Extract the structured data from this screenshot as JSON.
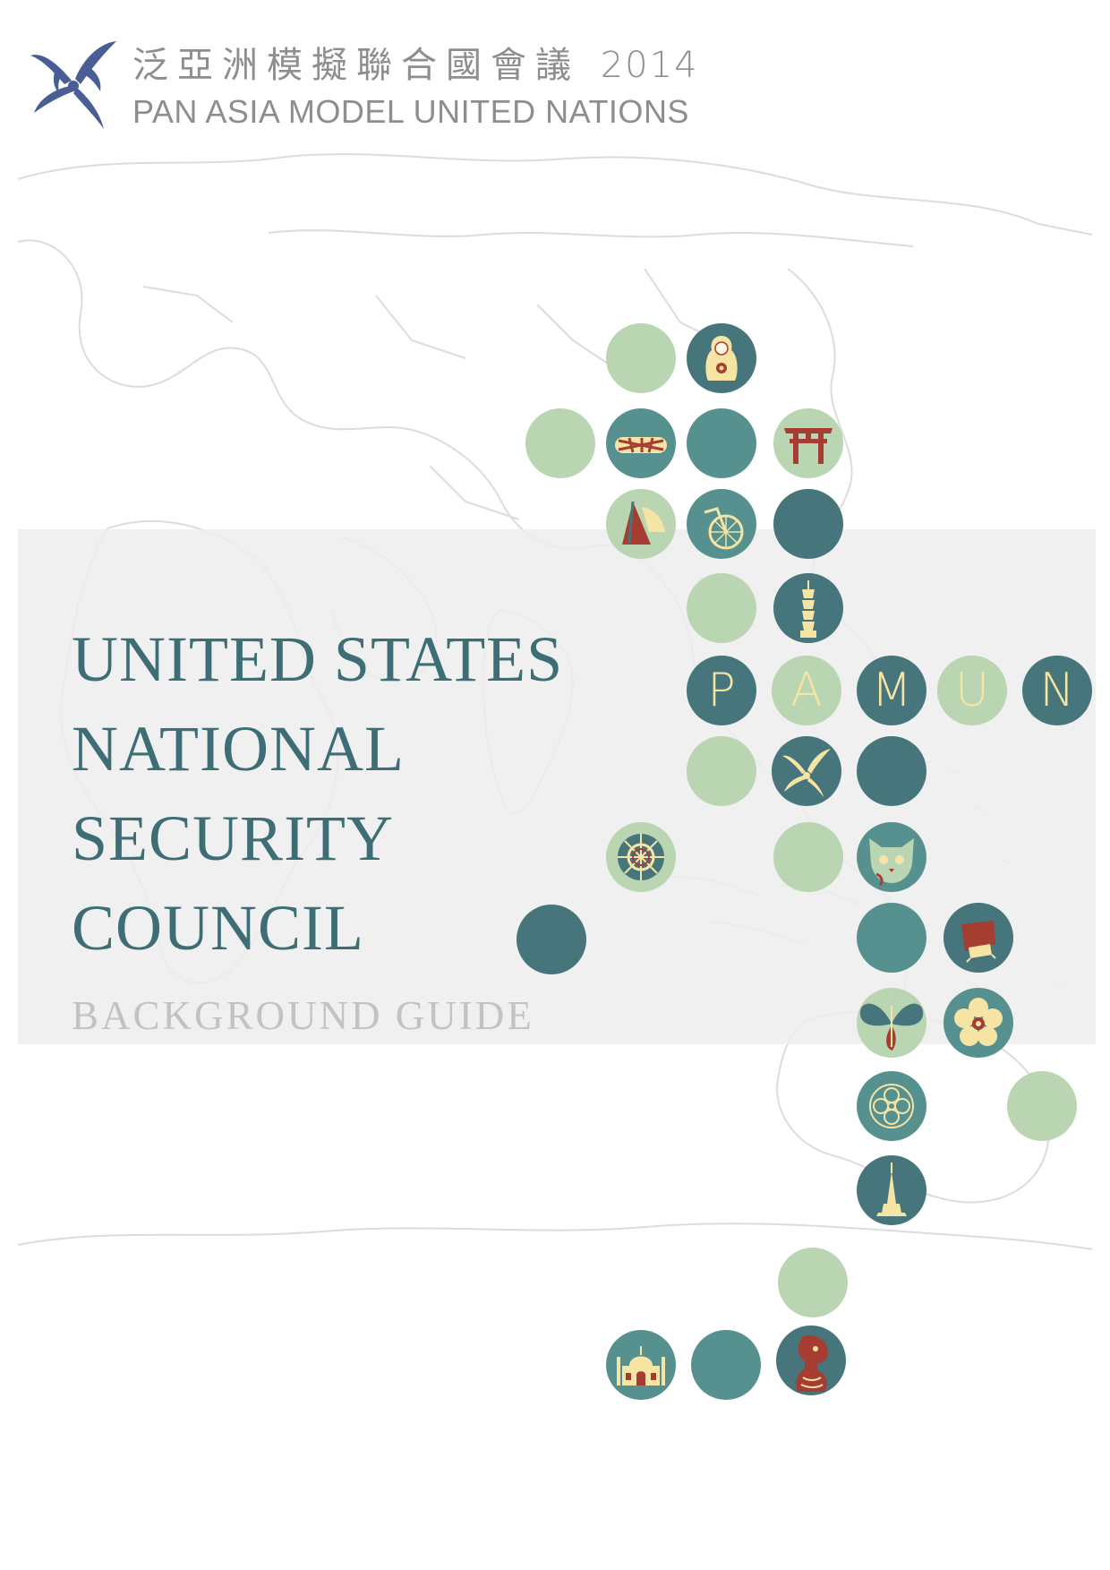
{
  "header": {
    "cjk_title": "泛亞洲模擬聯合國會議",
    "year": "2014",
    "english_title": "PAN ASIA MODEL UNITED NATIONS"
  },
  "document": {
    "title_lines": [
      "UNITED STATES",
      "NATIONAL",
      "SECURITY",
      "COUNCIL"
    ],
    "subtitle": "BACKGROUND GUIDE"
  },
  "wordmark": {
    "letters": [
      "P",
      "A",
      "M",
      "U",
      "N"
    ]
  },
  "colors": {
    "teal_dark": "#46757b",
    "teal_mid": "#57918f",
    "green_light": "#b9d5b1",
    "cream": "#f5e4a4",
    "brick_red": "#a63d32",
    "title_text": "#3e6e75",
    "subtitle_text": "#c2c2c2",
    "logo_blue": "#4a5e96"
  }
}
